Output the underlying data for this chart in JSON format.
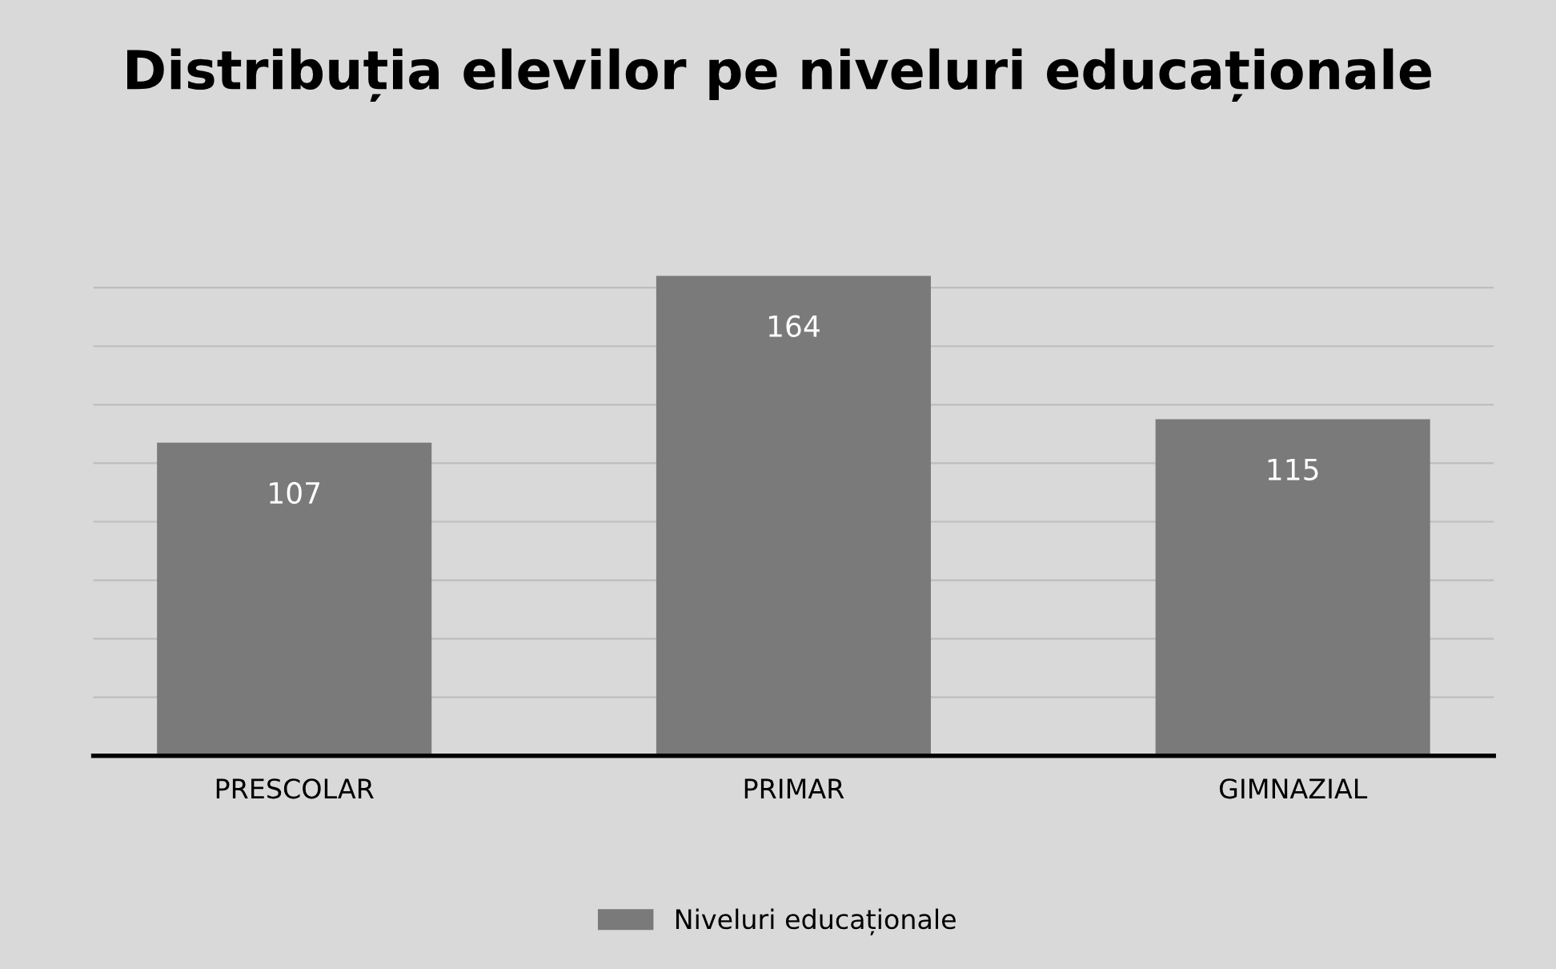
{
  "chart_data": {
    "type": "bar",
    "title": "Distribuția elevilor pe niveluri educaționale",
    "categories": [
      "PRESCOLAR",
      "PRIMAR",
      "GIMNAZIAL"
    ],
    "series": [
      {
        "name": "Niveluri educaționale",
        "color": "#7a7a7a",
        "values": [
          107,
          164,
          115
        ]
      }
    ],
    "data_labels": true,
    "legend": "bottom",
    "grid": "y",
    "tick_labels": "x"
  }
}
